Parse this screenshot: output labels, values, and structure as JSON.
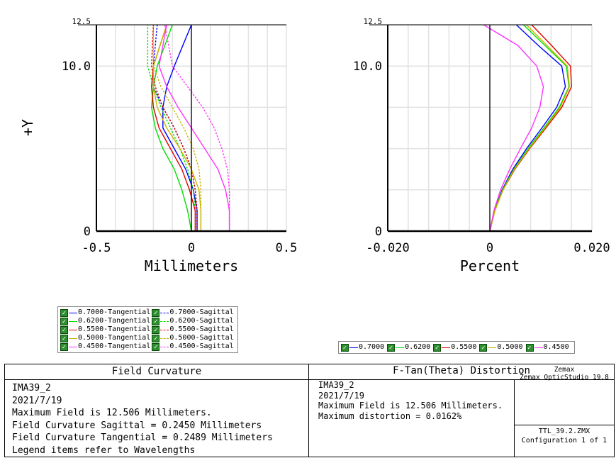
{
  "colors": {
    "w0.7000": "#0000ff",
    "w0.6200": "#00dd00",
    "w0.5500": "#e00000",
    "w0.5000": "#c8b400",
    "w0.4500": "#ff33ff"
  },
  "left_chart_ticks": {
    "x": [
      "-0.5",
      "0",
      "0.5"
    ],
    "y": [
      "0",
      "10.0",
      "12.5"
    ]
  },
  "right_chart_ticks": {
    "x": [
      "-0.020",
      "0",
      "0.020"
    ],
    "y": [
      "0",
      "10.0",
      "12.5"
    ]
  },
  "chart_data": [
    {
      "type": "line",
      "title": "Field Curvature",
      "xlabel": "Millimeters",
      "ylabel": "+Y",
      "xlim": [
        -0.5,
        0.5
      ],
      "ylim": [
        0,
        12.5
      ],
      "grid": true,
      "series": [
        {
          "name": "0.7000-Tangential",
          "color": "#0000ff",
          "dash": false,
          "x": [
            0.03,
            0.03,
            0.01,
            -0.03,
            -0.09,
            -0.15,
            -0.15,
            -0.13,
            -0.09,
            0.0
          ],
          "y": [
            0,
            1.25,
            2.5,
            3.75,
            5,
            6.25,
            7.5,
            8.75,
            10,
            12.5
          ]
        },
        {
          "name": "0.7000-Sagittal",
          "color": "#0000ff",
          "dash": true,
          "x": [
            0.03,
            0.03,
            0.02,
            0.0,
            -0.04,
            -0.09,
            -0.15,
            -0.2,
            -0.2,
            -0.18
          ],
          "y": [
            0,
            1.25,
            2.5,
            3.75,
            5,
            6.25,
            7.5,
            8.75,
            10,
            12.5
          ]
        },
        {
          "name": "0.6200-Tangential",
          "color": "#00dd00",
          "dash": false,
          "x": [
            0.0,
            -0.02,
            -0.05,
            -0.09,
            -0.15,
            -0.19,
            -0.21,
            -0.2,
            -0.18,
            -0.1
          ],
          "y": [
            0,
            1.25,
            2.5,
            3.75,
            5,
            6.25,
            7.5,
            8.75,
            10,
            12.5
          ]
        },
        {
          "name": "0.6200-Sagittal",
          "color": "#00dd00",
          "dash": true,
          "x": [
            0.02,
            0.02,
            0.01,
            -0.02,
            -0.06,
            -0.11,
            -0.16,
            -0.2,
            -0.23,
            -0.23
          ],
          "y": [
            0,
            1.25,
            2.5,
            3.75,
            5,
            6.25,
            7.5,
            8.75,
            10,
            12.5
          ]
        },
        {
          "name": "0.5500-Tangential",
          "color": "#e00000",
          "dash": false,
          "x": [
            0.02,
            0.02,
            -0.01,
            -0.05,
            -0.11,
            -0.17,
            -0.2,
            -0.21,
            -0.2,
            -0.13
          ],
          "y": [
            0,
            1.25,
            2.5,
            3.75,
            5,
            6.25,
            7.5,
            8.75,
            10,
            12.5
          ]
        },
        {
          "name": "0.5500-Sagittal",
          "color": "#e00000",
          "dash": true,
          "x": [
            0.03,
            0.03,
            0.02,
            0.0,
            -0.04,
            -0.09,
            -0.15,
            -0.19,
            -0.21,
            -0.2
          ],
          "y": [
            0,
            1.25,
            2.5,
            3.75,
            5,
            6.25,
            7.5,
            8.75,
            10,
            12.5
          ]
        },
        {
          "name": "0.5000-Tangential",
          "color": "#c8b400",
          "dash": false,
          "x": [
            0.05,
            0.05,
            0.04,
            0.0,
            -0.06,
            -0.13,
            -0.18,
            -0.2,
            -0.2,
            -0.13
          ],
          "y": [
            0,
            1.25,
            2.5,
            3.75,
            5,
            6.25,
            7.5,
            8.75,
            10,
            12.5
          ]
        },
        {
          "name": "0.5000-Sagittal",
          "color": "#c8b400",
          "dash": true,
          "x": [
            0.05,
            0.05,
            0.05,
            0.04,
            0.01,
            -0.04,
            -0.1,
            -0.16,
            -0.2,
            -0.2
          ],
          "y": [
            0,
            1.25,
            2.5,
            3.75,
            5,
            6.25,
            7.5,
            8.75,
            10,
            12.5
          ]
        },
        {
          "name": "0.4500-Tangential",
          "color": "#ff33ff",
          "dash": false,
          "x": [
            0.2,
            0.2,
            0.18,
            0.14,
            0.07,
            0.0,
            -0.07,
            -0.13,
            -0.17,
            -0.13
          ],
          "y": [
            0,
            1.25,
            2.5,
            3.75,
            5,
            6.25,
            7.5,
            8.75,
            10,
            12.5
          ]
        },
        {
          "name": "0.4500-Sagittal",
          "color": "#ff33ff",
          "dash": true,
          "x": [
            0.2,
            0.2,
            0.2,
            0.19,
            0.16,
            0.12,
            0.06,
            -0.02,
            -0.1,
            -0.14
          ],
          "y": [
            0,
            1.25,
            2.5,
            3.75,
            5,
            6.25,
            7.5,
            8.75,
            10,
            12.5
          ]
        }
      ]
    },
    {
      "type": "line",
      "title": "F-Tan(Theta) Distortion",
      "xlabel": "Percent",
      "xlim": [
        -0.02,
        0.02
      ],
      "ylim": [
        0,
        12.5
      ],
      "grid": true,
      "series": [
        {
          "name": "0.7000",
          "color": "#0000ff",
          "x": [
            0,
            0.0009,
            0.0024,
            0.0045,
            0.0072,
            0.0102,
            0.0131,
            0.0148,
            0.0141,
            0.0095,
            0.0052
          ],
          "y": [
            0,
            1.25,
            2.5,
            3.75,
            5,
            6.25,
            7.5,
            8.75,
            10,
            11.25,
            12.5
          ]
        },
        {
          "name": "0.6200",
          "color": "#00dd00",
          "x": [
            0,
            0.0009,
            0.0025,
            0.0047,
            0.0075,
            0.0106,
            0.0136,
            0.0155,
            0.015,
            0.0108,
            0.0066
          ],
          "y": [
            0,
            1.25,
            2.5,
            3.75,
            5,
            6.25,
            7.5,
            8.75,
            10,
            11.25,
            12.5
          ]
        },
        {
          "name": "0.5500",
          "color": "#e00000",
          "x": [
            0,
            0.001,
            0.0026,
            0.0049,
            0.0078,
            0.011,
            0.0141,
            0.016,
            0.0158,
            0.0121,
            0.0082
          ],
          "y": [
            0,
            1.25,
            2.5,
            3.75,
            5,
            6.25,
            7.5,
            8.75,
            10,
            11.25,
            12.5
          ]
        },
        {
          "name": "0.5000",
          "color": "#c8b400",
          "x": [
            0,
            0.001,
            0.0026,
            0.0048,
            0.0077,
            0.0108,
            0.0138,
            0.0156,
            0.0152,
            0.0112,
            0.0072
          ],
          "y": [
            0,
            1.25,
            2.5,
            3.75,
            5,
            6.25,
            7.5,
            8.75,
            10,
            11.25,
            12.5
          ]
        },
        {
          "name": "0.4500",
          "color": "#ff33ff",
          "x": [
            0,
            0.0008,
            0.0021,
            0.0039,
            0.006,
            0.0082,
            0.0098,
            0.0105,
            0.0092,
            0.0055,
            -0.0012
          ],
          "y": [
            0,
            1.25,
            2.5,
            3.75,
            5,
            6.25,
            7.5,
            8.75,
            10,
            11.25,
            12.5
          ]
        }
      ]
    }
  ],
  "legend_left": [
    [
      "0.7000-Tangential",
      "0.7000-Sagittal"
    ],
    [
      "0.6200-Tangential",
      "0.6200-Sagittal"
    ],
    [
      "0.5500-Tangential",
      "0.5500-Sagittal"
    ],
    [
      "0.5000-Tangential",
      "0.5000-Sagittal"
    ],
    [
      "0.4500-Tangential",
      "0.4500-Sagittal"
    ]
  ],
  "legend_right": [
    "0.7000",
    "0.6200",
    "0.5500",
    "0.5000",
    "0.4500"
  ],
  "info": {
    "left_title": "Field Curvature",
    "left_lines": [
      "IMA39_2",
      "2021/7/19",
      "Maximum Field is 12.506 Millimeters.",
      "Field Curvature Sagittal = 0.2450 Millimeters",
      "Field Curvature Tangential = 0.2489 Millimeters",
      "Legend items refer to Wavelengths"
    ],
    "right_title": "F-Tan(Theta) Distortion",
    "right_lines": [
      "IMA39_2",
      "2021/7/19",
      "Maximum Field is 12.506 Millimeters.",
      "Maximum distortion = 0.0162%"
    ],
    "brand": "Zemax",
    "product": "Zemax OpticStudio 19.8",
    "file": "TTL_39.2.ZMX",
    "config": "Configuration 1 of 1"
  }
}
